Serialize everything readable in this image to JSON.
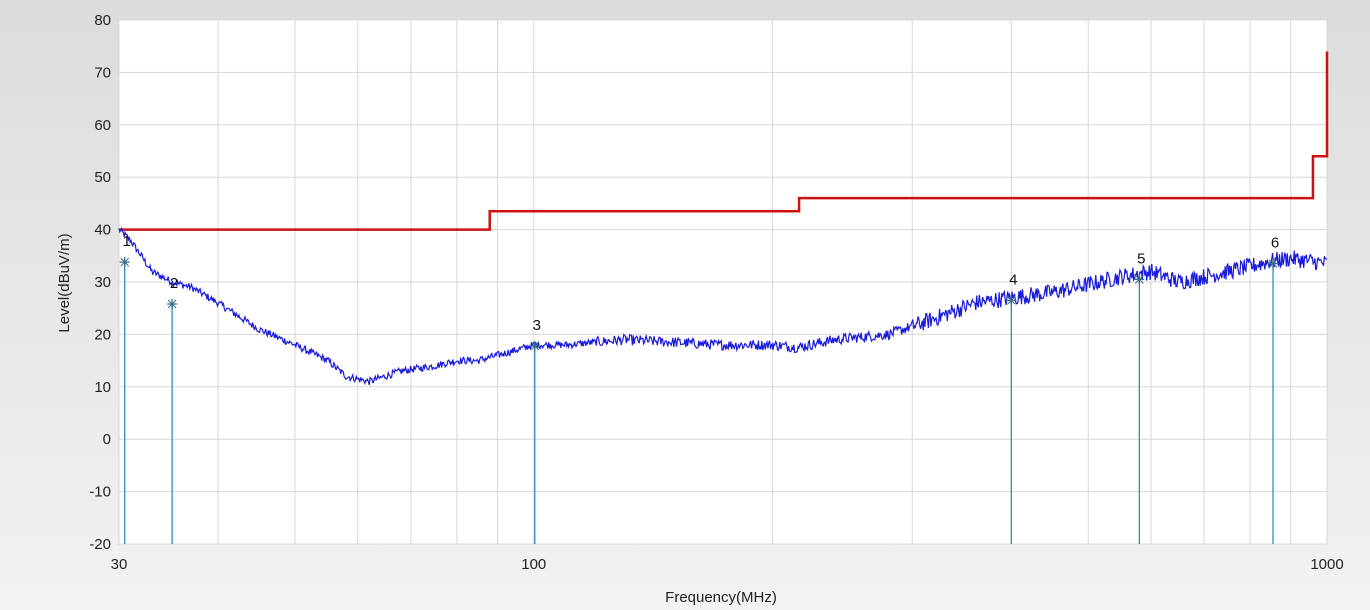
{
  "chart_data": {
    "type": "line",
    "title": "",
    "xlabel": "Frequency(MHz)",
    "ylabel": "Level(dBuV/m)",
    "x_scale": "log",
    "xlim": [
      30,
      1000
    ],
    "ylim": [
      -20,
      80
    ],
    "x_tick_labels": [
      "30",
      "100",
      "1000"
    ],
    "x_ticks": [
      30,
      100,
      1000
    ],
    "x_minor_grid": [
      40,
      50,
      60,
      70,
      80,
      90,
      200,
      300,
      400,
      500,
      600,
      700,
      800,
      900
    ],
    "y_ticks": [
      -20,
      -10,
      0,
      10,
      20,
      30,
      40,
      50,
      60,
      70,
      80
    ],
    "y_tick_labels": [
      "-20",
      "-10",
      "0",
      "10",
      "20",
      "30",
      "40",
      "50",
      "60",
      "70",
      "80"
    ],
    "grid": true,
    "colors": {
      "limit": "#cc1111",
      "measurement": "#1a1adb",
      "marker": "#2b8fc4",
      "grid": "#d7d7d7",
      "plot_bg": "#ffffff"
    },
    "series": [
      {
        "role": "limit",
        "x": [
          30,
          88,
          88,
          216,
          216,
          960,
          960,
          1000,
          1000
        ],
        "y": [
          40,
          40,
          43.5,
          43.5,
          46,
          46,
          54,
          54,
          74
        ]
      },
      {
        "role": "measurement",
        "x": [
          30,
          31,
          32,
          33,
          35,
          37,
          40,
          45,
          50,
          55,
          58,
          62,
          68,
          75,
          80,
          85,
          90,
          95,
          100,
          110,
          130,
          150,
          170,
          200,
          215,
          240,
          280,
          320,
          360,
          400,
          450,
          500,
          550,
          600,
          650,
          700,
          750,
          800,
          850,
          900,
          950,
          1000
        ],
        "y": [
          40,
          38,
          35,
          32,
          30,
          29,
          26,
          21,
          18,
          15,
          12,
          11,
          13,
          14,
          15,
          15,
          16,
          17,
          18,
          18,
          19,
          18.5,
          18,
          18,
          17.5,
          19,
          20,
          23,
          26,
          27,
          28,
          29.5,
          31,
          32,
          30,
          31,
          32,
          33,
          34,
          34.5,
          34,
          33.5
        ]
      }
    ],
    "markers": [
      {
        "label": "1",
        "x": 30.5,
        "y": 33.8
      },
      {
        "label": "2",
        "x": 35,
        "y": 25.8
      },
      {
        "label": "3",
        "x": 100.3,
        "y": 17.8
      },
      {
        "label": "4",
        "x": 400,
        "y": 26.5
      },
      {
        "label": "5",
        "x": 580,
        "y": 30.5
      },
      {
        "label": "6",
        "x": 855,
        "y": 33.5
      }
    ]
  }
}
